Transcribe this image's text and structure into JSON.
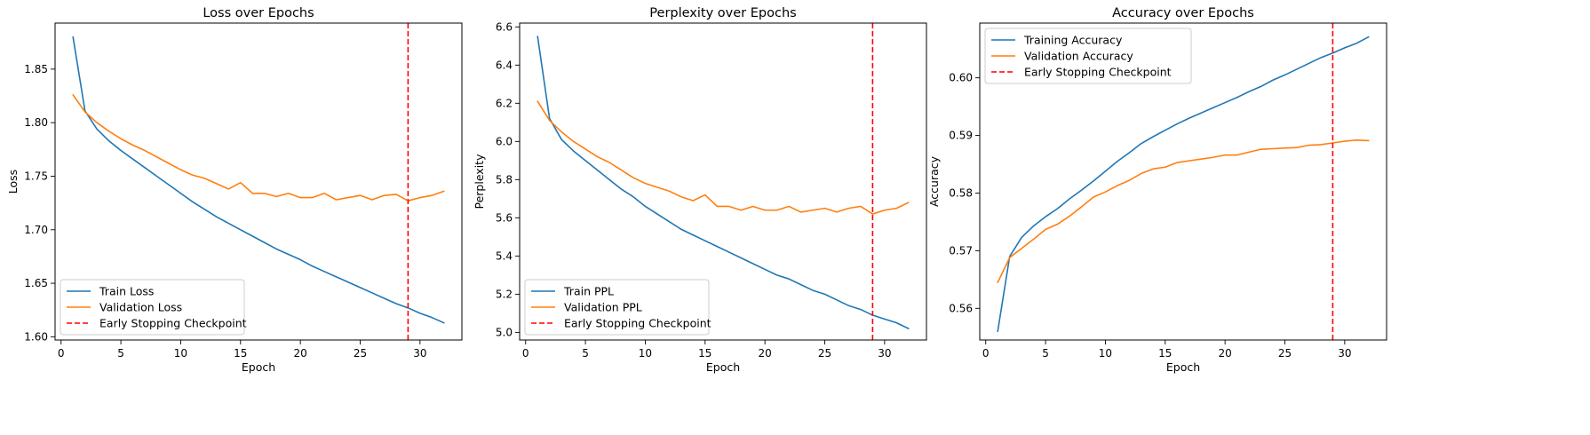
{
  "colors": {
    "train": "#1f77b4",
    "validation": "#ff7f0e",
    "checkpoint": "#ff0000",
    "axes": "#000000",
    "background": "#ffffff"
  },
  "chart_data": [
    {
      "type": "line",
      "title": "Loss over Epochs",
      "xlabel": "Epoch",
      "ylabel": "Loss",
      "xlim": [
        -0.5,
        33.5
      ],
      "ylim": [
        1.597,
        1.893
      ],
      "xticks": [
        0,
        5,
        10,
        15,
        20,
        25,
        30
      ],
      "yticks": [
        1.6,
        1.65,
        1.7,
        1.75,
        1.8,
        1.85
      ],
      "ytick_labels": [
        "1.60",
        "1.65",
        "1.70",
        "1.75",
        "1.80",
        "1.85"
      ],
      "grid": false,
      "legend_position": "lower-left",
      "checkpoint_epoch": 29,
      "checkpoint_label": "Early Stopping Checkpoint",
      "x": [
        1,
        2,
        3,
        4,
        5,
        6,
        7,
        8,
        9,
        10,
        11,
        12,
        13,
        14,
        15,
        16,
        17,
        18,
        19,
        20,
        21,
        22,
        23,
        24,
        25,
        26,
        27,
        28,
        29,
        30,
        31,
        32
      ],
      "series": [
        {
          "name": "Train Loss",
          "color": "#1f77b4",
          "values": [
            1.88,
            1.811,
            1.794,
            1.783,
            1.774,
            1.766,
            1.758,
            1.75,
            1.742,
            1.734,
            1.726,
            1.719,
            1.712,
            1.706,
            1.7,
            1.694,
            1.688,
            1.682,
            1.677,
            1.672,
            1.666,
            1.661,
            1.656,
            1.651,
            1.646,
            1.641,
            1.636,
            1.631,
            1.627,
            1.622,
            1.618,
            1.613
          ]
        },
        {
          "name": "Validation Loss",
          "color": "#ff7f0e",
          "values": [
            1.826,
            1.81,
            1.8,
            1.792,
            1.785,
            1.779,
            1.774,
            1.768,
            1.762,
            1.756,
            1.751,
            1.748,
            1.743,
            1.738,
            1.744,
            1.734,
            1.734,
            1.731,
            1.734,
            1.73,
            1.73,
            1.734,
            1.728,
            1.73,
            1.732,
            1.728,
            1.732,
            1.733,
            1.727,
            1.73,
            1.732,
            1.736
          ]
        }
      ]
    },
    {
      "type": "line",
      "title": "Perplexity over Epochs",
      "xlabel": "Epoch",
      "ylabel": "Perplexity",
      "xlim": [
        -0.5,
        33.5
      ],
      "ylim": [
        4.96,
        6.62
      ],
      "xticks": [
        0,
        5,
        10,
        15,
        20,
        25,
        30
      ],
      "yticks": [
        5.0,
        5.2,
        5.4,
        5.6,
        5.8,
        6.0,
        6.2,
        6.4,
        6.6
      ],
      "ytick_labels": [
        "5.0",
        "5.2",
        "5.4",
        "5.6",
        "5.8",
        "6.0",
        "6.2",
        "6.4",
        "6.6"
      ],
      "grid": false,
      "legend_position": "lower-left",
      "checkpoint_epoch": 29,
      "checkpoint_label": "Early Stopping Checkpoint",
      "x": [
        1,
        2,
        3,
        4,
        5,
        6,
        7,
        8,
        9,
        10,
        11,
        12,
        13,
        14,
        15,
        16,
        17,
        18,
        19,
        20,
        21,
        22,
        23,
        24,
        25,
        26,
        27,
        28,
        29,
        30,
        31,
        32
      ],
      "series": [
        {
          "name": "Train PPL",
          "color": "#1f77b4",
          "values": [
            6.55,
            6.12,
            6.01,
            5.95,
            5.9,
            5.85,
            5.8,
            5.75,
            5.71,
            5.66,
            5.62,
            5.58,
            5.54,
            5.51,
            5.48,
            5.45,
            5.42,
            5.39,
            5.36,
            5.33,
            5.3,
            5.28,
            5.25,
            5.22,
            5.2,
            5.17,
            5.14,
            5.12,
            5.09,
            5.07,
            5.05,
            5.02
          ]
        },
        {
          "name": "Validation PPL",
          "color": "#ff7f0e",
          "values": [
            6.21,
            6.11,
            6.05,
            6.0,
            5.96,
            5.92,
            5.89,
            5.85,
            5.81,
            5.78,
            5.76,
            5.74,
            5.71,
            5.69,
            5.72,
            5.66,
            5.66,
            5.64,
            5.66,
            5.64,
            5.64,
            5.66,
            5.63,
            5.64,
            5.65,
            5.63,
            5.65,
            5.66,
            5.62,
            5.64,
            5.65,
            5.68
          ]
        }
      ]
    },
    {
      "type": "line",
      "title": "Accuracy over Epochs",
      "xlabel": "Epoch",
      "ylabel": "Accuracy",
      "xlim": [
        -0.5,
        33.5
      ],
      "ylim": [
        0.5545,
        0.6095
      ],
      "xticks": [
        0,
        5,
        10,
        15,
        20,
        25,
        30
      ],
      "yticks": [
        0.56,
        0.57,
        0.58,
        0.59,
        0.6
      ],
      "ytick_labels": [
        "0.56",
        "0.57",
        "0.58",
        "0.59",
        "0.60"
      ],
      "grid": false,
      "legend_position": "top-left",
      "checkpoint_epoch": 29,
      "checkpoint_label": "Early Stopping Checkpoint",
      "x": [
        1,
        2,
        3,
        4,
        5,
        6,
        7,
        8,
        9,
        10,
        11,
        12,
        13,
        14,
        15,
        16,
        17,
        18,
        19,
        20,
        21,
        22,
        23,
        24,
        25,
        26,
        27,
        28,
        29,
        30,
        31,
        32
      ],
      "series": [
        {
          "name": "Training Accuracy",
          "color": "#1f77b4",
          "values": [
            0.556,
            0.569,
            0.5723,
            0.5743,
            0.5759,
            0.5773,
            0.579,
            0.5805,
            0.5821,
            0.5838,
            0.5855,
            0.587,
            0.5886,
            0.5898,
            0.5909,
            0.592,
            0.593,
            0.5939,
            0.5948,
            0.5957,
            0.5966,
            0.5976,
            0.5985,
            0.5996,
            0.6005,
            0.6015,
            0.6025,
            0.6035,
            0.6043,
            0.6052,
            0.606,
            0.6071
          ]
        },
        {
          "name": "Validation Accuracy",
          "color": "#ff7f0e",
          "values": [
            0.5645,
            0.5688,
            0.5704,
            0.572,
            0.5737,
            0.5746,
            0.576,
            0.5776,
            0.5793,
            0.5802,
            0.5813,
            0.5822,
            0.5834,
            0.5842,
            0.5845,
            0.5853,
            0.5856,
            0.5859,
            0.5862,
            0.5866,
            0.5866,
            0.5871,
            0.5876,
            0.5877,
            0.5878,
            0.5879,
            0.5883,
            0.5884,
            0.5887,
            0.589,
            0.5892,
            0.5891
          ]
        }
      ]
    }
  ]
}
